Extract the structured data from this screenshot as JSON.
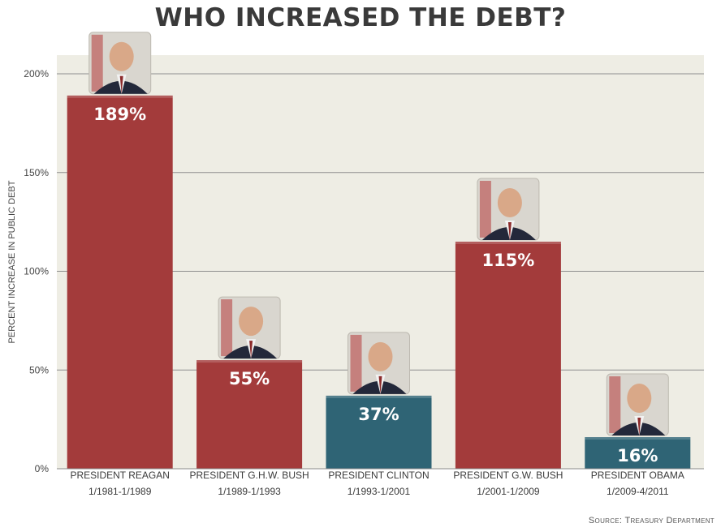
{
  "title": "WHO INCREASED THE DEBT?",
  "source": "Source: Treasury Department",
  "colors": {
    "plot_background": "#eeede4",
    "gridline": "#8f8f8f",
    "bar_red": "#a33b3b",
    "bar_teal": "#2f6475",
    "value_label": "#ffffff"
  },
  "chart_data": {
    "type": "bar",
    "title": "WHO INCREASED THE DEBT?",
    "ylabel": "PERCENT INCREASE IN PUBLIC DEBT",
    "xlabel": "",
    "ylim": [
      0,
      210
    ],
    "yticks": [
      0,
      50,
      100,
      150,
      200
    ],
    "ytick_labels": [
      "0%",
      "50%",
      "100%",
      "150%",
      "200%"
    ],
    "grid": true,
    "categories": [
      "PRESIDENT REAGAN 1/1981-1/1989",
      "PRESIDENT G.H.W. BUSH 1/1989-1/1993",
      "PRESIDENT CLINTON 1/1993-1/2001",
      "PRESIDENT G.W. BUSH 1/2001-1/2009",
      "PRESIDENT OBAMA 1/2009-4/2011"
    ],
    "category_lines": [
      [
        "PRESIDENT REAGAN",
        "1/1981-1/1989"
      ],
      [
        "PRESIDENT G.H.W. BUSH",
        "1/1989-1/1993"
      ],
      [
        "PRESIDENT CLINTON",
        "1/1993-1/2001"
      ],
      [
        "PRESIDENT G.W. BUSH",
        "1/2001-1/2009"
      ],
      [
        "PRESIDENT OBAMA",
        "1/2009-4/2011"
      ]
    ],
    "values": [
      189,
      55,
      37,
      115,
      16
    ],
    "value_labels": [
      "189%",
      "55%",
      "37%",
      "115%",
      "16%"
    ],
    "bar_colors": [
      "#a33b3b",
      "#a33b3b",
      "#2f6475",
      "#a33b3b",
      "#2f6475"
    ],
    "portraits": [
      "portrait-reagan",
      "portrait-ghw-bush",
      "portrait-clinton",
      "portrait-gw-bush",
      "portrait-obama"
    ]
  }
}
